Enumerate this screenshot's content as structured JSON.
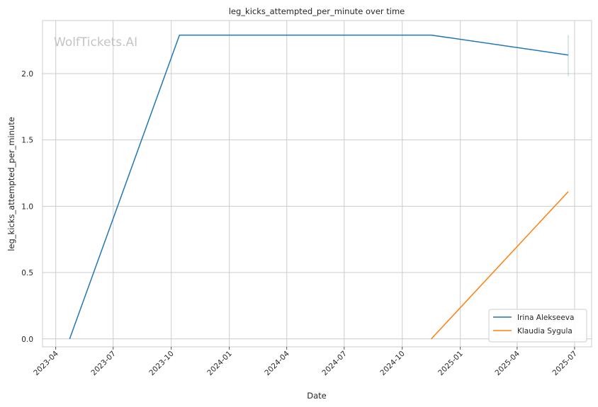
{
  "chart_data": {
    "type": "line",
    "title": "leg_kicks_attempted_per_minute over time",
    "xlabel": "Date",
    "ylabel": "leg_kicks_attempted_per_minute",
    "watermark": "WolfTickets.AI",
    "x_ticks": [
      "2023-04",
      "2023-07",
      "2023-10",
      "2024-01",
      "2024-04",
      "2024-07",
      "2024-10",
      "2025-01",
      "2025-04",
      "2025-07"
    ],
    "y_ticks": [
      "0.0",
      "0.5",
      "1.0",
      "1.5",
      "2.0"
    ],
    "xlim": [
      "2023-03-11",
      "2025-07-28"
    ],
    "ylim": [
      -0.06,
      2.4
    ],
    "grid": true,
    "legend_position": "bottom-right",
    "series": [
      {
        "name": "Irina Alekseeva",
        "color": "#1f77b4",
        "points": [
          {
            "x": "2023-04-23",
            "y": 0.0
          },
          {
            "x": "2023-10-14",
            "y": 2.29
          },
          {
            "x": "2024-11-16",
            "y": 2.29
          },
          {
            "x": "2025-06-21",
            "y": 2.14
          }
        ]
      },
      {
        "name": "Klaudia Sygula",
        "color": "#ff7f0e",
        "points": [
          {
            "x": "2024-11-16",
            "y": 0.0
          },
          {
            "x": "2025-06-21",
            "y": 1.11
          }
        ]
      }
    ],
    "error_bar": {
      "x": "2025-06-21",
      "y_low": 1.98,
      "y_high": 2.29,
      "color": "#7fb2a8"
    }
  }
}
